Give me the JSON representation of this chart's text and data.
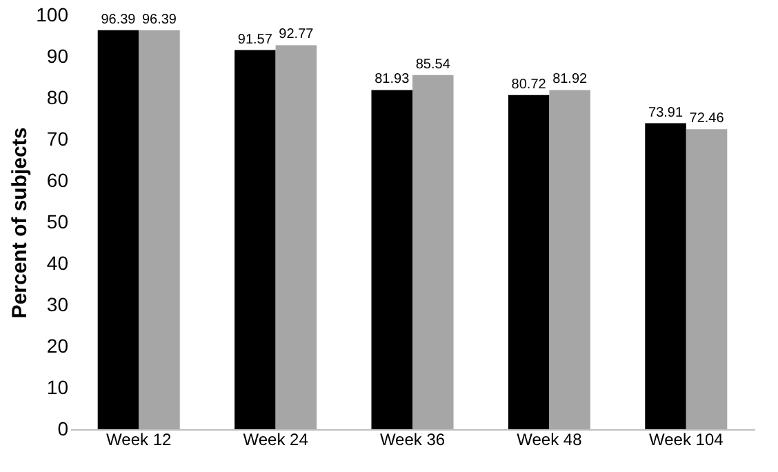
{
  "chart_data": {
    "type": "bar",
    "ylabel": "Percent of subjects",
    "categories": [
      "Week 12",
      "Week 24",
      "Week 36",
      "Week 48",
      "Week 104"
    ],
    "series": [
      {
        "color": "#000000",
        "values": [
          96.39,
          91.57,
          81.93,
          80.72,
          73.91
        ]
      },
      {
        "color": "#a6a6a6",
        "values": [
          96.39,
          92.77,
          85.54,
          81.92,
          72.46
        ]
      }
    ],
    "ylim": [
      0,
      100
    ],
    "yticks": [
      0,
      10,
      20,
      30,
      40,
      50,
      60,
      70,
      80,
      90,
      100
    ],
    "grid": false,
    "data_labels": true
  }
}
